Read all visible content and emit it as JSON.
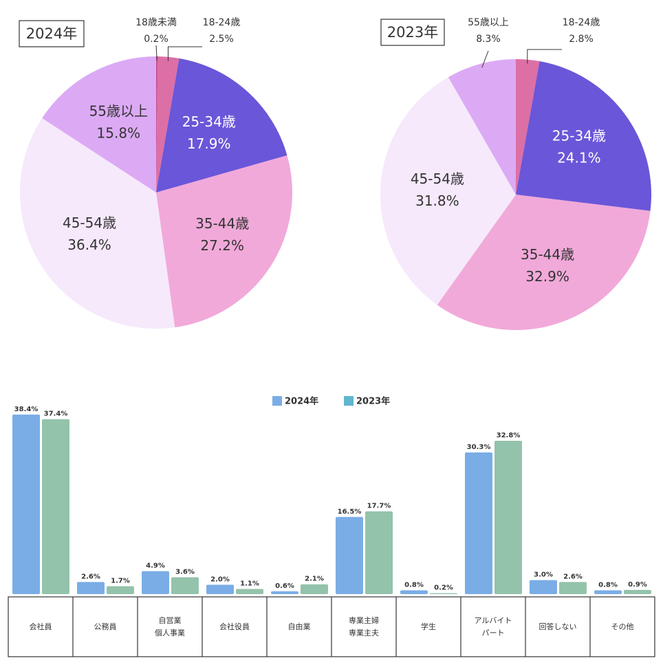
{
  "chart_data": [
    {
      "type": "pie",
      "title": "2024年",
      "categories": [
        "18歳未満",
        "18-24歳",
        "25-34歳",
        "35-44歳",
        "45-54歳",
        "55歳以上"
      ],
      "values": [
        0.2,
        2.5,
        17.9,
        27.2,
        36.4,
        15.8
      ],
      "value_labels": [
        "0.2%",
        "2.5%",
        "17.9%",
        "27.2%",
        "36.4%",
        "15.8%"
      ],
      "colors": [
        "#c8528c",
        "#dc6fa6",
        "#6a56d8",
        "#f1a9d9",
        "#f6e9fb",
        "#dcaaf4"
      ]
    },
    {
      "type": "pie",
      "title": "2023年",
      "categories": [
        "18-24歳",
        "25-34歳",
        "35-44歳",
        "45-54歳",
        "55歳以上"
      ],
      "values": [
        2.8,
        24.1,
        32.9,
        31.8,
        8.3
      ],
      "value_labels": [
        "2.8%",
        "24.1%",
        "32.9%",
        "31.8%",
        "8.3%"
      ],
      "colors": [
        "#dc6fa6",
        "#6a56d8",
        "#f1a9d9",
        "#f6e9fb",
        "#dcaaf4"
      ]
    },
    {
      "type": "bar",
      "categories": [
        [
          "会社員"
        ],
        [
          "公務員"
        ],
        [
          "自営業",
          "個人事業"
        ],
        [
          "会社役員"
        ],
        [
          "自由業"
        ],
        [
          "専業主婦",
          "専業主夫"
        ],
        [
          "学生"
        ],
        [
          "アルバイト",
          "パート"
        ],
        [
          "回答しない"
        ],
        [
          "その他"
        ]
      ],
      "ylim": [
        0,
        40
      ],
      "series": [
        {
          "name": "2024年",
          "color": "#7aade6",
          "legend_color": "#7aade6",
          "values": [
            38.4,
            2.6,
            4.9,
            2.0,
            0.6,
            16.5,
            0.8,
            30.3,
            3.0,
            0.8
          ],
          "value_labels": [
            "38.4%",
            "2.6%",
            "4.9%",
            "2.0%",
            "0.6%",
            "16.5%",
            "0.8%",
            "30.3%",
            "3.0%",
            "0.8%"
          ]
        },
        {
          "name": "2023年",
          "color": "#93c3ab",
          "legend_color": "#62b5cf",
          "values": [
            37.4,
            1.7,
            3.6,
            1.1,
            2.1,
            17.7,
            0.2,
            32.8,
            2.6,
            0.9
          ],
          "value_labels": [
            "37.4%",
            "1.7%",
            "3.6%",
            "1.1%",
            "2.1%",
            "17.7%",
            "0.2%",
            "32.8%",
            "2.6%",
            "0.9%"
          ]
        }
      ]
    }
  ]
}
